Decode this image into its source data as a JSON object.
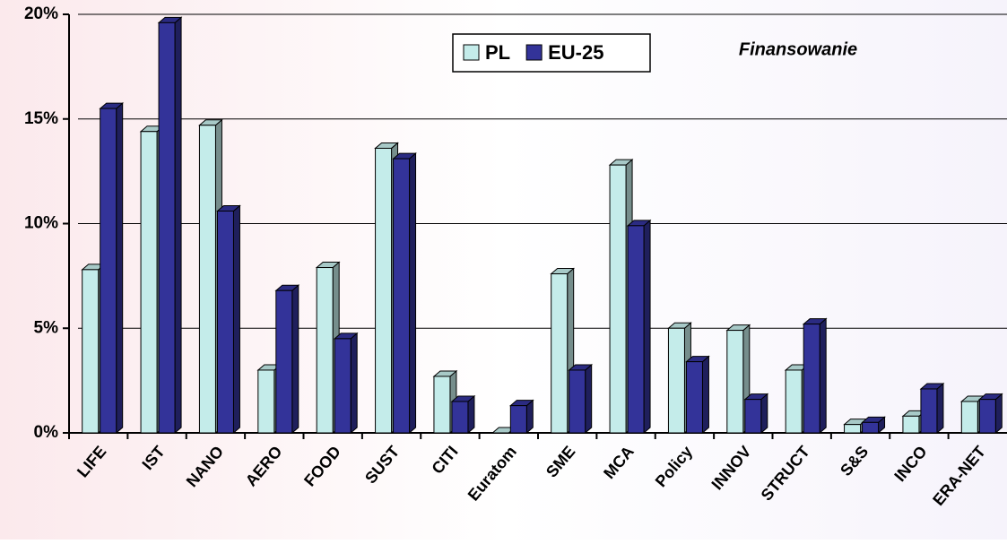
{
  "chart_data": {
    "type": "bar",
    "annotation": "Finansowanie",
    "categories": [
      "LIFE",
      "IST",
      "NANO",
      "AERO",
      "FOOD",
      "SUST",
      "CITI",
      "Euratom",
      "SME",
      "MCA",
      "Policy",
      "INNOV",
      "STRUCT",
      "S&S",
      "INCO",
      "ERA-NET"
    ],
    "series": [
      {
        "name": "PL",
        "color": "#c4ecea",
        "values": [
          7.8,
          14.4,
          14.7,
          3.0,
          7.9,
          13.6,
          2.7,
          0,
          7.6,
          12.8,
          5.0,
          4.9,
          3.0,
          0.4,
          0.8,
          1.5
        ]
      },
      {
        "name": "EU-25",
        "color": "#333399",
        "values": [
          15.5,
          19.6,
          10.6,
          6.8,
          4.5,
          13.1,
          1.5,
          1.3,
          3.0,
          9.9,
          3.4,
          1.6,
          5.2,
          0.5,
          2.1,
          1.6
        ]
      }
    ],
    "ylim": [
      0,
      20
    ],
    "yticks": [
      {
        "value": 0,
        "label": "0%"
      },
      {
        "value": 5,
        "label": "5%"
      },
      {
        "value": 10,
        "label": "10%"
      },
      {
        "value": 15,
        "label": "15%"
      },
      {
        "value": 20,
        "label": "20%"
      }
    ],
    "grid": true,
    "legend": "top"
  }
}
